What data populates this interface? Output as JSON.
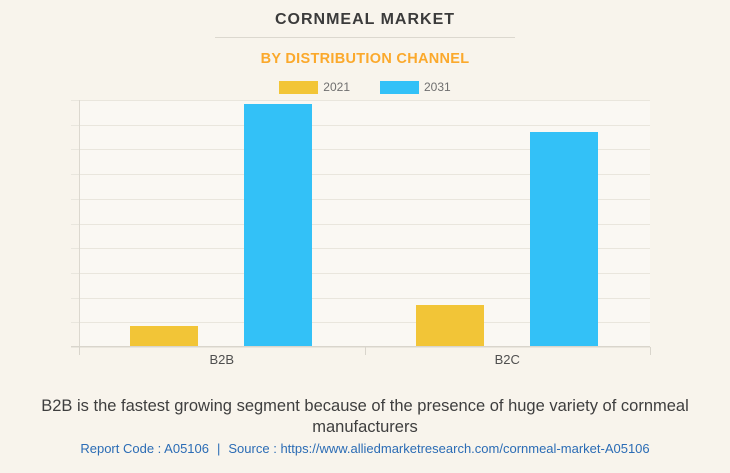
{
  "colors": {
    "page_background": "#F8F4EC",
    "plot_background": "#FAF8F3",
    "title": "#3B3B3B",
    "subtitle": "#FBA92C",
    "link": "#2B6CB5",
    "gridline": "#E9E6DD",
    "series_2021": "#F2C537",
    "series_2031": "#33C1F7"
  },
  "chart_data": {
    "type": "bar",
    "title": "CORNMEAL MARKET",
    "subtitle": "BY DISTRIBUTION CHANNEL",
    "categories": [
      "B2B",
      "B2C"
    ],
    "series": [
      {
        "name": "2021",
        "color": "#F2C537",
        "values": [
          8,
          16.5
        ]
      },
      {
        "name": "2031",
        "color": "#33C1F7",
        "values": [
          98,
          86.5
        ]
      }
    ],
    "ylim": [
      0,
      100
    ],
    "y_axis_labels_visible": false,
    "grid": true,
    "gridline_count": 11,
    "legend_position": "top",
    "legend_entries": [
      "2021",
      "2031"
    ]
  },
  "footer": {
    "description": "B2B is the fastest growing segment because of the presence of huge variety of cornmeal manufacturers",
    "report_code": "Report Code : A05106",
    "separator": "|",
    "source_prefix": "Source :",
    "source_url": "https://www.alliedmarketresearch.com/cornmeal-market-A05106"
  }
}
